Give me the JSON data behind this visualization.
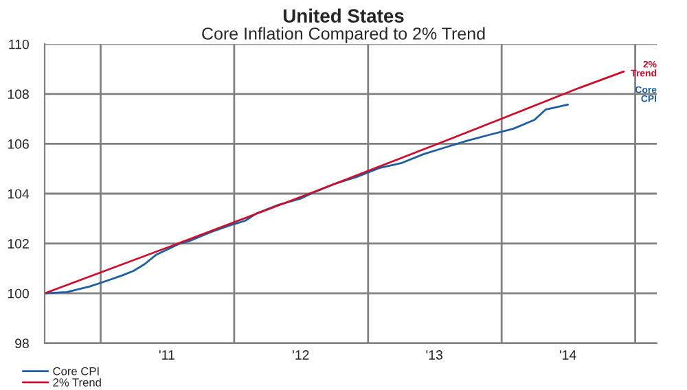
{
  "chart_data": {
    "type": "line",
    "title": "United States",
    "subtitle": "Core Inflation Compared to 2% Trend",
    "x": [
      "2010-08",
      "2010-10",
      "2010-12",
      "2011-01",
      "2011-03",
      "2011-04",
      "2011-05",
      "2011-06",
      "2011-08",
      "2011-09",
      "2011-11",
      "2012-01",
      "2012-02",
      "2012-03",
      "2012-05",
      "2012-07",
      "2012-08",
      "2012-10",
      "2012-12",
      "2013-02",
      "2013-04",
      "2013-06",
      "2013-08",
      "2013-10",
      "2013-12",
      "2014-02",
      "2014-04",
      "2014-05",
      "2014-07"
    ],
    "series": [
      {
        "name": "Core CPI",
        "color": "#1f5fa0",
        "values": [
          100.0,
          100.05,
          100.27,
          100.42,
          100.72,
          100.9,
          101.17,
          101.54,
          101.97,
          102.1,
          102.47,
          102.78,
          102.92,
          103.2,
          103.55,
          103.8,
          104.02,
          104.39,
          104.67,
          105.03,
          105.22,
          105.58,
          105.86,
          106.13,
          106.37,
          106.6,
          106.96,
          107.37,
          107.57
        ]
      },
      {
        "name": "2% Trend",
        "color": "#c8102e",
        "x": [
          "2010-08",
          "2011-08",
          "2012-08",
          "2013-08",
          "2014-08",
          "2014-12"
        ],
        "values": [
          100.0,
          102.0,
          104.04,
          106.12,
          108.24,
          108.9
        ]
      }
    ],
    "annotations": [
      "Core\nCPI",
      "2%\nTrend"
    ],
    "xlim": [
      "2010-08",
      "2015-03"
    ],
    "xticks": [
      {
        "value": "2011-01",
        "label": null
      },
      {
        "value": "2011-07",
        "label": "'11"
      },
      {
        "value": "2012-01",
        "label": null
      },
      {
        "value": "2012-07",
        "label": "'12"
      },
      {
        "value": "2013-01",
        "label": null
      },
      {
        "value": "2013-07",
        "label": "'13"
      },
      {
        "value": "2014-01",
        "label": null
      },
      {
        "value": "2014-07",
        "label": "'14"
      },
      {
        "value": "2015-01",
        "label": null
      }
    ],
    "ylim": [
      98,
      110
    ],
    "yticks": [
      98,
      100,
      102,
      104,
      106,
      108,
      110
    ],
    "grid": true,
    "legend": "bottom left",
    "marker": "none",
    "line_style": "solid"
  }
}
